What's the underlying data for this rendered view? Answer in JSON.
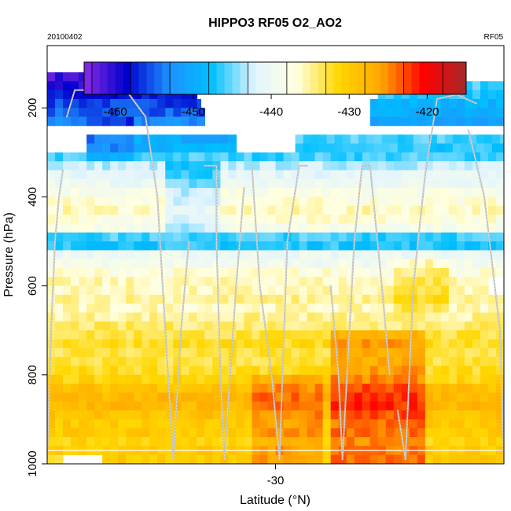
{
  "chart_data": {
    "type": "heatmap",
    "title": "HIPPO3 RF05 O2_AO2",
    "subtitle_left": "20100402",
    "subtitle_right": "RF05",
    "xlabel": "Latitude (°N)",
    "ylabel": "Pressure (hPa)",
    "xlim": [
      -35.8,
      -24.2
    ],
    "ylim": [
      1000,
      60
    ],
    "y_scale": "reversed",
    "x_ticks": [
      -30
    ],
    "y_ticks": [
      200,
      400,
      600,
      800,
      1000
    ],
    "colorbar": {
      "range": [
        -464,
        -415
      ],
      "ticks": [
        -460,
        -450,
        -440,
        -430,
        -420
      ],
      "position": "top-inside",
      "colors": [
        "#8a2be2",
        "#0000cd",
        "#1e90ff",
        "#00bfff",
        "#e0f4ff",
        "#ffffe0",
        "#ffd700",
        "#ffa500",
        "#ff0000",
        "#a52a2a"
      ]
    },
    "grid": false,
    "legend": "none",
    "bin_height_hpa": 20,
    "bin_width_deg": 0.2,
    "track_color": "#c0c0c0",
    "rows": [
      {
        "p": 130,
        "segs": [
          [
            -35.8,
            -32.3,
            -461
          ]
        ]
      },
      {
        "p": 150,
        "segs": [
          [
            -35.8,
            -32.3,
            -460
          ],
          [
            -27.4,
            -24.2,
            -446
          ]
        ]
      },
      {
        "p": 170,
        "segs": [
          [
            -35.8,
            -32.0,
            -458
          ],
          [
            -27.4,
            -24.2,
            -447
          ]
        ]
      },
      {
        "p": 190,
        "segs": [
          [
            -35.8,
            -31.9,
            -456
          ],
          [
            -27.6,
            -24.2,
            -449
          ]
        ]
      },
      {
        "p": 210,
        "segs": [
          [
            -35.8,
            -31.8,
            -455
          ],
          [
            -27.6,
            -24.2,
            -450
          ]
        ]
      },
      {
        "p": 230,
        "segs": [
          [
            -35.8,
            -31.8,
            -453
          ],
          [
            -27.6,
            -24.2,
            -451
          ]
        ]
      },
      {
        "p": 270,
        "segs": [
          [
            -34.8,
            -31.0,
            -450
          ],
          [
            -29.5,
            -24.2,
            -446
          ]
        ]
      },
      {
        "p": 290,
        "segs": [
          [
            -34.8,
            -31.0,
            -449
          ],
          [
            -29.5,
            -24.2,
            -447
          ]
        ]
      },
      {
        "p": 310,
        "segs": [
          [
            -35.8,
            -24.2,
            -446
          ]
        ]
      },
      {
        "p": 330,
        "segs": [
          [
            -35.8,
            -24.2,
            -443
          ]
        ]
      },
      {
        "p": 350,
        "segs": [
          [
            -35.8,
            -24.2,
            -441
          ]
        ]
      },
      {
        "p": 370,
        "segs": [
          [
            -35.8,
            -24.2,
            -440
          ]
        ]
      },
      {
        "p": 390,
        "segs": [
          [
            -35.8,
            -24.2,
            -438
          ]
        ]
      },
      {
        "p": 410,
        "segs": [
          [
            -35.8,
            -24.2,
            -437
          ]
        ]
      },
      {
        "p": 430,
        "segs": [
          [
            -35.8,
            -24.2,
            -436
          ]
        ]
      },
      {
        "p": 450,
        "segs": [
          [
            -35.8,
            -24.2,
            -437
          ]
        ]
      },
      {
        "p": 470,
        "segs": [
          [
            -35.8,
            -24.2,
            -438
          ]
        ]
      },
      {
        "p": 490,
        "segs": [
          [
            -35.8,
            -24.2,
            -446
          ]
        ]
      },
      {
        "p": 510,
        "segs": [
          [
            -35.8,
            -24.2,
            -447
          ]
        ]
      },
      {
        "p": 530,
        "segs": [
          [
            -35.8,
            -24.2,
            -440
          ]
        ]
      },
      {
        "p": 550,
        "segs": [
          [
            -35.8,
            -24.2,
            -439
          ]
        ]
      },
      {
        "p": 570,
        "segs": [
          [
            -35.8,
            -24.2,
            -437
          ]
        ]
      },
      {
        "p": 590,
        "segs": [
          [
            -35.8,
            -24.6,
            -436
          ]
        ]
      },
      {
        "p": 610,
        "segs": [
          [
            -35.8,
            -24.6,
            -436
          ]
        ]
      },
      {
        "p": 630,
        "segs": [
          [
            -35.8,
            -24.2,
            -435
          ]
        ]
      },
      {
        "p": 650,
        "segs": [
          [
            -35.8,
            -24.2,
            -436
          ]
        ]
      },
      {
        "p": 670,
        "segs": [
          [
            -35.8,
            -24.2,
            -435
          ]
        ]
      },
      {
        "p": 690,
        "segs": [
          [
            -35.8,
            -24.2,
            -434
          ]
        ]
      },
      {
        "p": 710,
        "segs": [
          [
            -35.8,
            -24.2,
            -433
          ]
        ]
      },
      {
        "p": 730,
        "segs": [
          [
            -35.8,
            -24.2,
            -432
          ]
        ]
      },
      {
        "p": 750,
        "segs": [
          [
            -35.8,
            -24.2,
            -433
          ]
        ]
      },
      {
        "p": 770,
        "segs": [
          [
            -35.8,
            -24.2,
            -433
          ]
        ]
      },
      {
        "p": 790,
        "segs": [
          [
            -35.8,
            -24.2,
            -432
          ]
        ]
      },
      {
        "p": 810,
        "segs": [
          [
            -35.8,
            -24.2,
            -431
          ]
        ]
      },
      {
        "p": 830,
        "segs": [
          [
            -35.8,
            -24.2,
            -429
          ]
        ]
      },
      {
        "p": 850,
        "segs": [
          [
            -35.8,
            -24.2,
            -428
          ]
        ]
      },
      {
        "p": 870,
        "segs": [
          [
            -35.8,
            -24.2,
            -428
          ]
        ]
      },
      {
        "p": 890,
        "segs": [
          [
            -35.8,
            -24.2,
            -429
          ]
        ]
      },
      {
        "p": 910,
        "segs": [
          [
            -35.8,
            -24.2,
            -430
          ]
        ]
      },
      {
        "p": 930,
        "segs": [
          [
            -35.8,
            -24.2,
            -430
          ]
        ]
      },
      {
        "p": 950,
        "segs": [
          [
            -35.8,
            -24.2,
            -431
          ]
        ]
      },
      {
        "p": 970,
        "segs": [
          [
            -35.8,
            -24.2,
            -430
          ]
        ]
      },
      {
        "p": 990,
        "segs": [
          [
            -35.8,
            -35.4,
            -433
          ],
          [
            -34.4,
            -24.2,
            -430
          ]
        ]
      }
    ],
    "hotspots": [
      {
        "lat": [
          -28.7,
          -26.2
        ],
        "p": [
          700,
          990
        ],
        "delta": 6
      },
      {
        "lat": [
          -30.6,
          -28.8
        ],
        "p": [
          810,
          990
        ],
        "delta": 4
      },
      {
        "lat": [
          -27.0,
          -25.6
        ],
        "p": [
          540,
          660
        ],
        "delta": 3
      },
      {
        "lat": [
          -32.8,
          -31.4
        ],
        "p": [
          330,
          480
        ],
        "delta": -5
      },
      {
        "lat": [
          -34.9,
          -33.7
        ],
        "p": [
          230,
          320
        ],
        "delta": -4
      }
    ],
    "tracks": [
      [
        [
          -35.8,
          990
        ],
        [
          -35.7,
          700
        ],
        [
          -35.6,
          500
        ],
        [
          -35.5,
          400
        ],
        [
          -35.4,
          340
        ]
      ],
      [
        [
          -35.3,
          220
        ],
        [
          -35.1,
          160
        ],
        [
          -34.3,
          160
        ],
        [
          -33.8,
          160
        ]
      ],
      [
        [
          -33.8,
          160
        ],
        [
          -33.3,
          220
        ],
        [
          -33.0,
          400
        ],
        [
          -32.8,
          700
        ],
        [
          -32.6,
          990
        ]
      ],
      [
        [
          -32.6,
          990
        ],
        [
          -32.4,
          700
        ],
        [
          -32.2,
          500
        ]
      ],
      [
        [
          -31.8,
          330
        ],
        [
          -31.5,
          330
        ],
        [
          -31.5,
          500
        ],
        [
          -31.4,
          800
        ],
        [
          -31.3,
          990
        ]
      ],
      [
        [
          -31.3,
          990
        ],
        [
          -31.0,
          600
        ],
        [
          -30.8,
          380
        ]
      ],
      [
        [
          -30.6,
          330
        ],
        [
          -30.4,
          600
        ],
        [
          -30.1,
          800
        ],
        [
          -29.9,
          990
        ]
      ],
      [
        [
          -29.9,
          990
        ],
        [
          -29.7,
          500
        ],
        [
          -29.4,
          330
        ],
        [
          -29.2,
          330
        ]
      ],
      [
        [
          -28.6,
          600
        ],
        [
          -28.4,
          800
        ],
        [
          -28.3,
          990
        ]
      ],
      [
        [
          -28.3,
          990
        ],
        [
          -28.0,
          500
        ],
        [
          -27.8,
          330
        ],
        [
          -27.6,
          330
        ]
      ],
      [
        [
          -27.6,
          330
        ],
        [
          -27.3,
          600
        ],
        [
          -27.1,
          800
        ]
      ],
      [
        [
          -26.9,
          880
        ],
        [
          -26.7,
          990
        ]
      ],
      [
        [
          -26.7,
          990
        ],
        [
          -26.5,
          600
        ],
        [
          -26.2,
          350
        ],
        [
          -25.9,
          180
        ],
        [
          -25.4,
          170
        ],
        [
          -24.9,
          190
        ]
      ],
      [
        [
          -25.1,
          250
        ],
        [
          -24.7,
          400
        ],
        [
          -24.3,
          700
        ],
        [
          -24.2,
          990
        ]
      ]
    ]
  }
}
